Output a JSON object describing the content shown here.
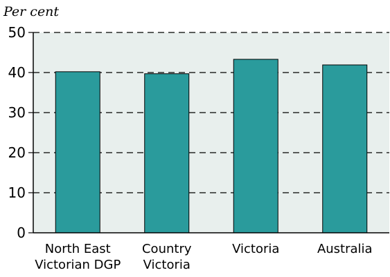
{
  "chart_data": {
    "type": "bar",
    "title": "",
    "xlabel": "",
    "ylabel": "Per cent",
    "ylim": [
      0,
      50
    ],
    "yticks": [
      0,
      10,
      20,
      30,
      40,
      50
    ],
    "grid": true,
    "categories": [
      [
        "North East",
        "Victorian DGP"
      ],
      [
        "Country",
        "Victoria"
      ],
      [
        "Victoria"
      ],
      [
        "Australia"
      ]
    ],
    "values": [
      40.2,
      39.7,
      43.3,
      41.9
    ],
    "colors": {
      "bar": "#2a9b9c",
      "plot_background": "#e8efed",
      "grid": "#000000"
    }
  }
}
